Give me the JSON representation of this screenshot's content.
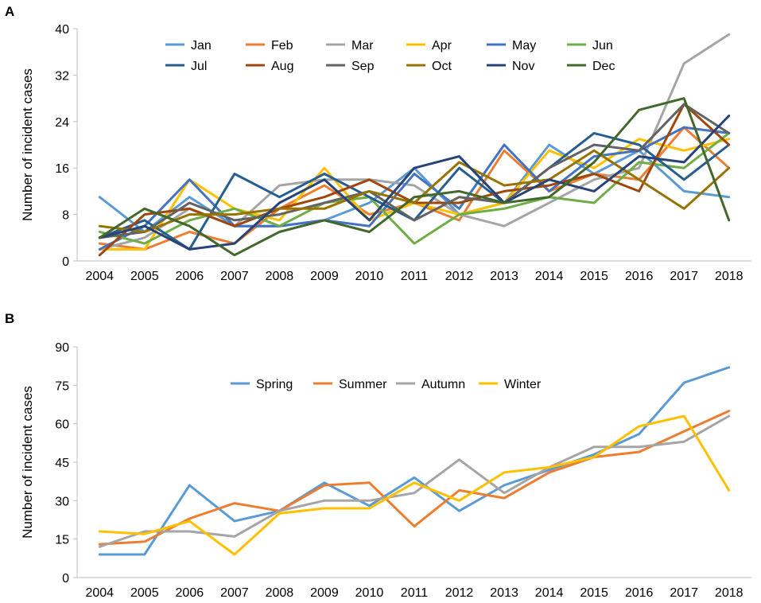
{
  "chart_data": [
    {
      "panel": "A",
      "type": "line",
      "title": "",
      "xlabel": "",
      "ylabel": "Number of incident cases",
      "ylim": [
        0,
        40
      ],
      "yticks": [
        0,
        8,
        16,
        24,
        32,
        40
      ],
      "grid": false,
      "legend": "top-left, 6 columns",
      "categories": [
        "2004",
        "2005",
        "2006",
        "2007",
        "2008",
        "2009",
        "2010",
        "2011",
        "2012",
        "2013",
        "2014",
        "2015",
        "2016",
        "2017",
        "2018"
      ],
      "series": [
        {
          "name": "Jan",
          "color": "#5B9BD5",
          "values": [
            11,
            5,
            11,
            6,
            6,
            7,
            10,
            16,
            8,
            10,
            20,
            15,
            19,
            12,
            11
          ]
        },
        {
          "name": "Feb",
          "color": "#ED7D31",
          "values": [
            3,
            2,
            5,
            3,
            9,
            13,
            8,
            10,
            7,
            19,
            12,
            15,
            14,
            23,
            16
          ]
        },
        {
          "name": "Mar",
          "color": "#A5A5A5",
          "values": [
            2,
            4,
            9,
            6,
            13,
            14,
            14,
            13,
            8,
            6,
            10,
            14,
            16,
            34,
            39
          ]
        },
        {
          "name": "Apr",
          "color": "#FFC000",
          "values": [
            2,
            2,
            14,
            9,
            7,
            16,
            7,
            10,
            8,
            10,
            19,
            16,
            21,
            19,
            21
          ]
        },
        {
          "name": "May",
          "color": "#4472C4",
          "values": [
            2,
            6,
            14,
            6,
            6,
            7,
            6,
            15,
            9,
            20,
            12,
            18,
            19,
            23,
            22
          ]
        },
        {
          "name": "Jun",
          "color": "#70AD47",
          "values": [
            5,
            3,
            7,
            9,
            6,
            10,
            11,
            3,
            8,
            9,
            11,
            10,
            17,
            16,
            22
          ]
        },
        {
          "name": "Jul",
          "color": "#255E91",
          "values": [
            4,
            7,
            2,
            15,
            11,
            15,
            11,
            7,
            16,
            10,
            16,
            22,
            20,
            14,
            20
          ]
        },
        {
          "name": "Aug",
          "color": "#9E480E",
          "values": [
            1,
            8,
            9,
            6,
            9,
            11,
            14,
            10,
            10,
            12,
            13,
            15,
            12,
            27,
            20
          ]
        },
        {
          "name": "Sep",
          "color": "#636363",
          "values": [
            4,
            5,
            10,
            7,
            8,
            10,
            12,
            7,
            11,
            10,
            16,
            20,
            19,
            27,
            22
          ]
        },
        {
          "name": "Oct",
          "color": "#997300",
          "values": [
            6,
            5,
            8,
            8,
            9,
            9,
            12,
            10,
            17,
            13,
            14,
            19,
            14,
            9,
            16
          ]
        },
        {
          "name": "Nov",
          "color": "#264478",
          "values": [
            4,
            6,
            2,
            3,
            10,
            14,
            7,
            16,
            18,
            10,
            14,
            12,
            18,
            17,
            25
          ]
        },
        {
          "name": "Dec",
          "color": "#43682B",
          "values": [
            4,
            9,
            6,
            1,
            5,
            7,
            5,
            11,
            12,
            10,
            11,
            17,
            26,
            28,
            7
          ]
        }
      ]
    },
    {
      "panel": "B",
      "type": "line",
      "title": "",
      "xlabel": "",
      "ylabel": "Number of incident cases",
      "ylim": [
        0,
        90
      ],
      "yticks": [
        0,
        15,
        30,
        45,
        60,
        75,
        90
      ],
      "grid": false,
      "legend": "top-center, 4 columns",
      "categories": [
        "2004",
        "2005",
        "2006",
        "2007",
        "2008",
        "2009",
        "2010",
        "2011",
        "2012",
        "2013",
        "2014",
        "2015",
        "2016",
        "2017",
        "2018"
      ],
      "series": [
        {
          "name": "Spring",
          "color": "#5B9BD5",
          "values": [
            9,
            9,
            36,
            22,
            26,
            37,
            28,
            39,
            26,
            36,
            42,
            48,
            56,
            76,
            82
          ]
        },
        {
          "name": "Summer",
          "color": "#ED7D31",
          "values": [
            13,
            14,
            23,
            29,
            26,
            36,
            37,
            20,
            34,
            31,
            41,
            47,
            49,
            57,
            65
          ]
        },
        {
          "name": "Autumn",
          "color": "#A5A5A5",
          "values": [
            12,
            18,
            18,
            16,
            26,
            30,
            30,
            33,
            46,
            33,
            43,
            51,
            51,
            53,
            63
          ]
        },
        {
          "name": "Winter",
          "color": "#FFC000",
          "values": [
            18,
            17,
            22,
            9,
            25,
            27,
            27,
            37,
            30,
            41,
            43,
            47,
            59,
            63,
            34
          ]
        }
      ]
    }
  ]
}
